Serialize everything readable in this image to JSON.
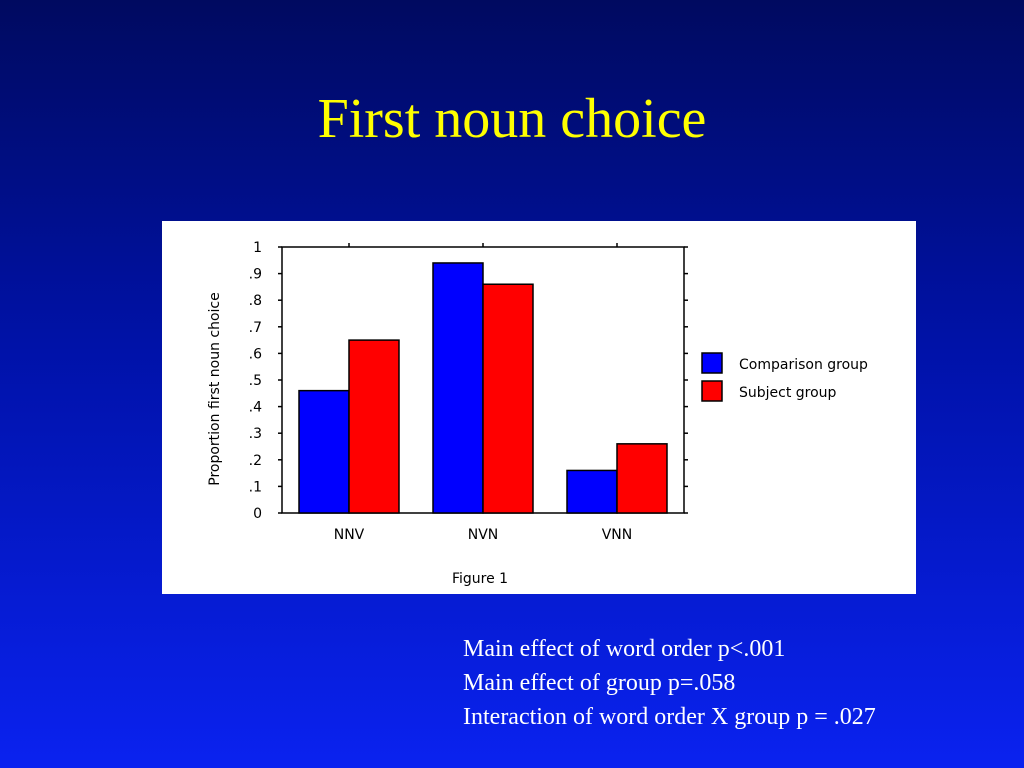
{
  "slide": {
    "title": "First noun choice",
    "notes": [
      "Main effect of word order p<.001",
      "Main effect of group p=.058",
      "Interaction of word order X group p = .027"
    ]
  },
  "colors": {
    "background": "#0012a8",
    "title": "#ffff00",
    "comparison": "#0000ff",
    "subject": "#ff0000"
  },
  "chart_data": {
    "type": "bar",
    "title": "",
    "caption": "Figure 1",
    "xlabel": "",
    "ylabel": "Proportion first noun choice",
    "ylim": [
      0,
      1
    ],
    "yticks": [
      "0",
      ".1",
      ".2",
      ".3",
      ".4",
      ".5",
      ".6",
      ".7",
      ".8",
      ".9",
      "1"
    ],
    "categories": [
      "NNV",
      "NVN",
      "VNN"
    ],
    "series": [
      {
        "name": "Comparison group",
        "color": "#0000ff",
        "values": [
          0.46,
          0.94,
          0.16
        ]
      },
      {
        "name": "Subject group",
        "color": "#ff0000",
        "values": [
          0.65,
          0.86,
          0.26
        ]
      }
    ],
    "legend": "right",
    "grid": false
  }
}
